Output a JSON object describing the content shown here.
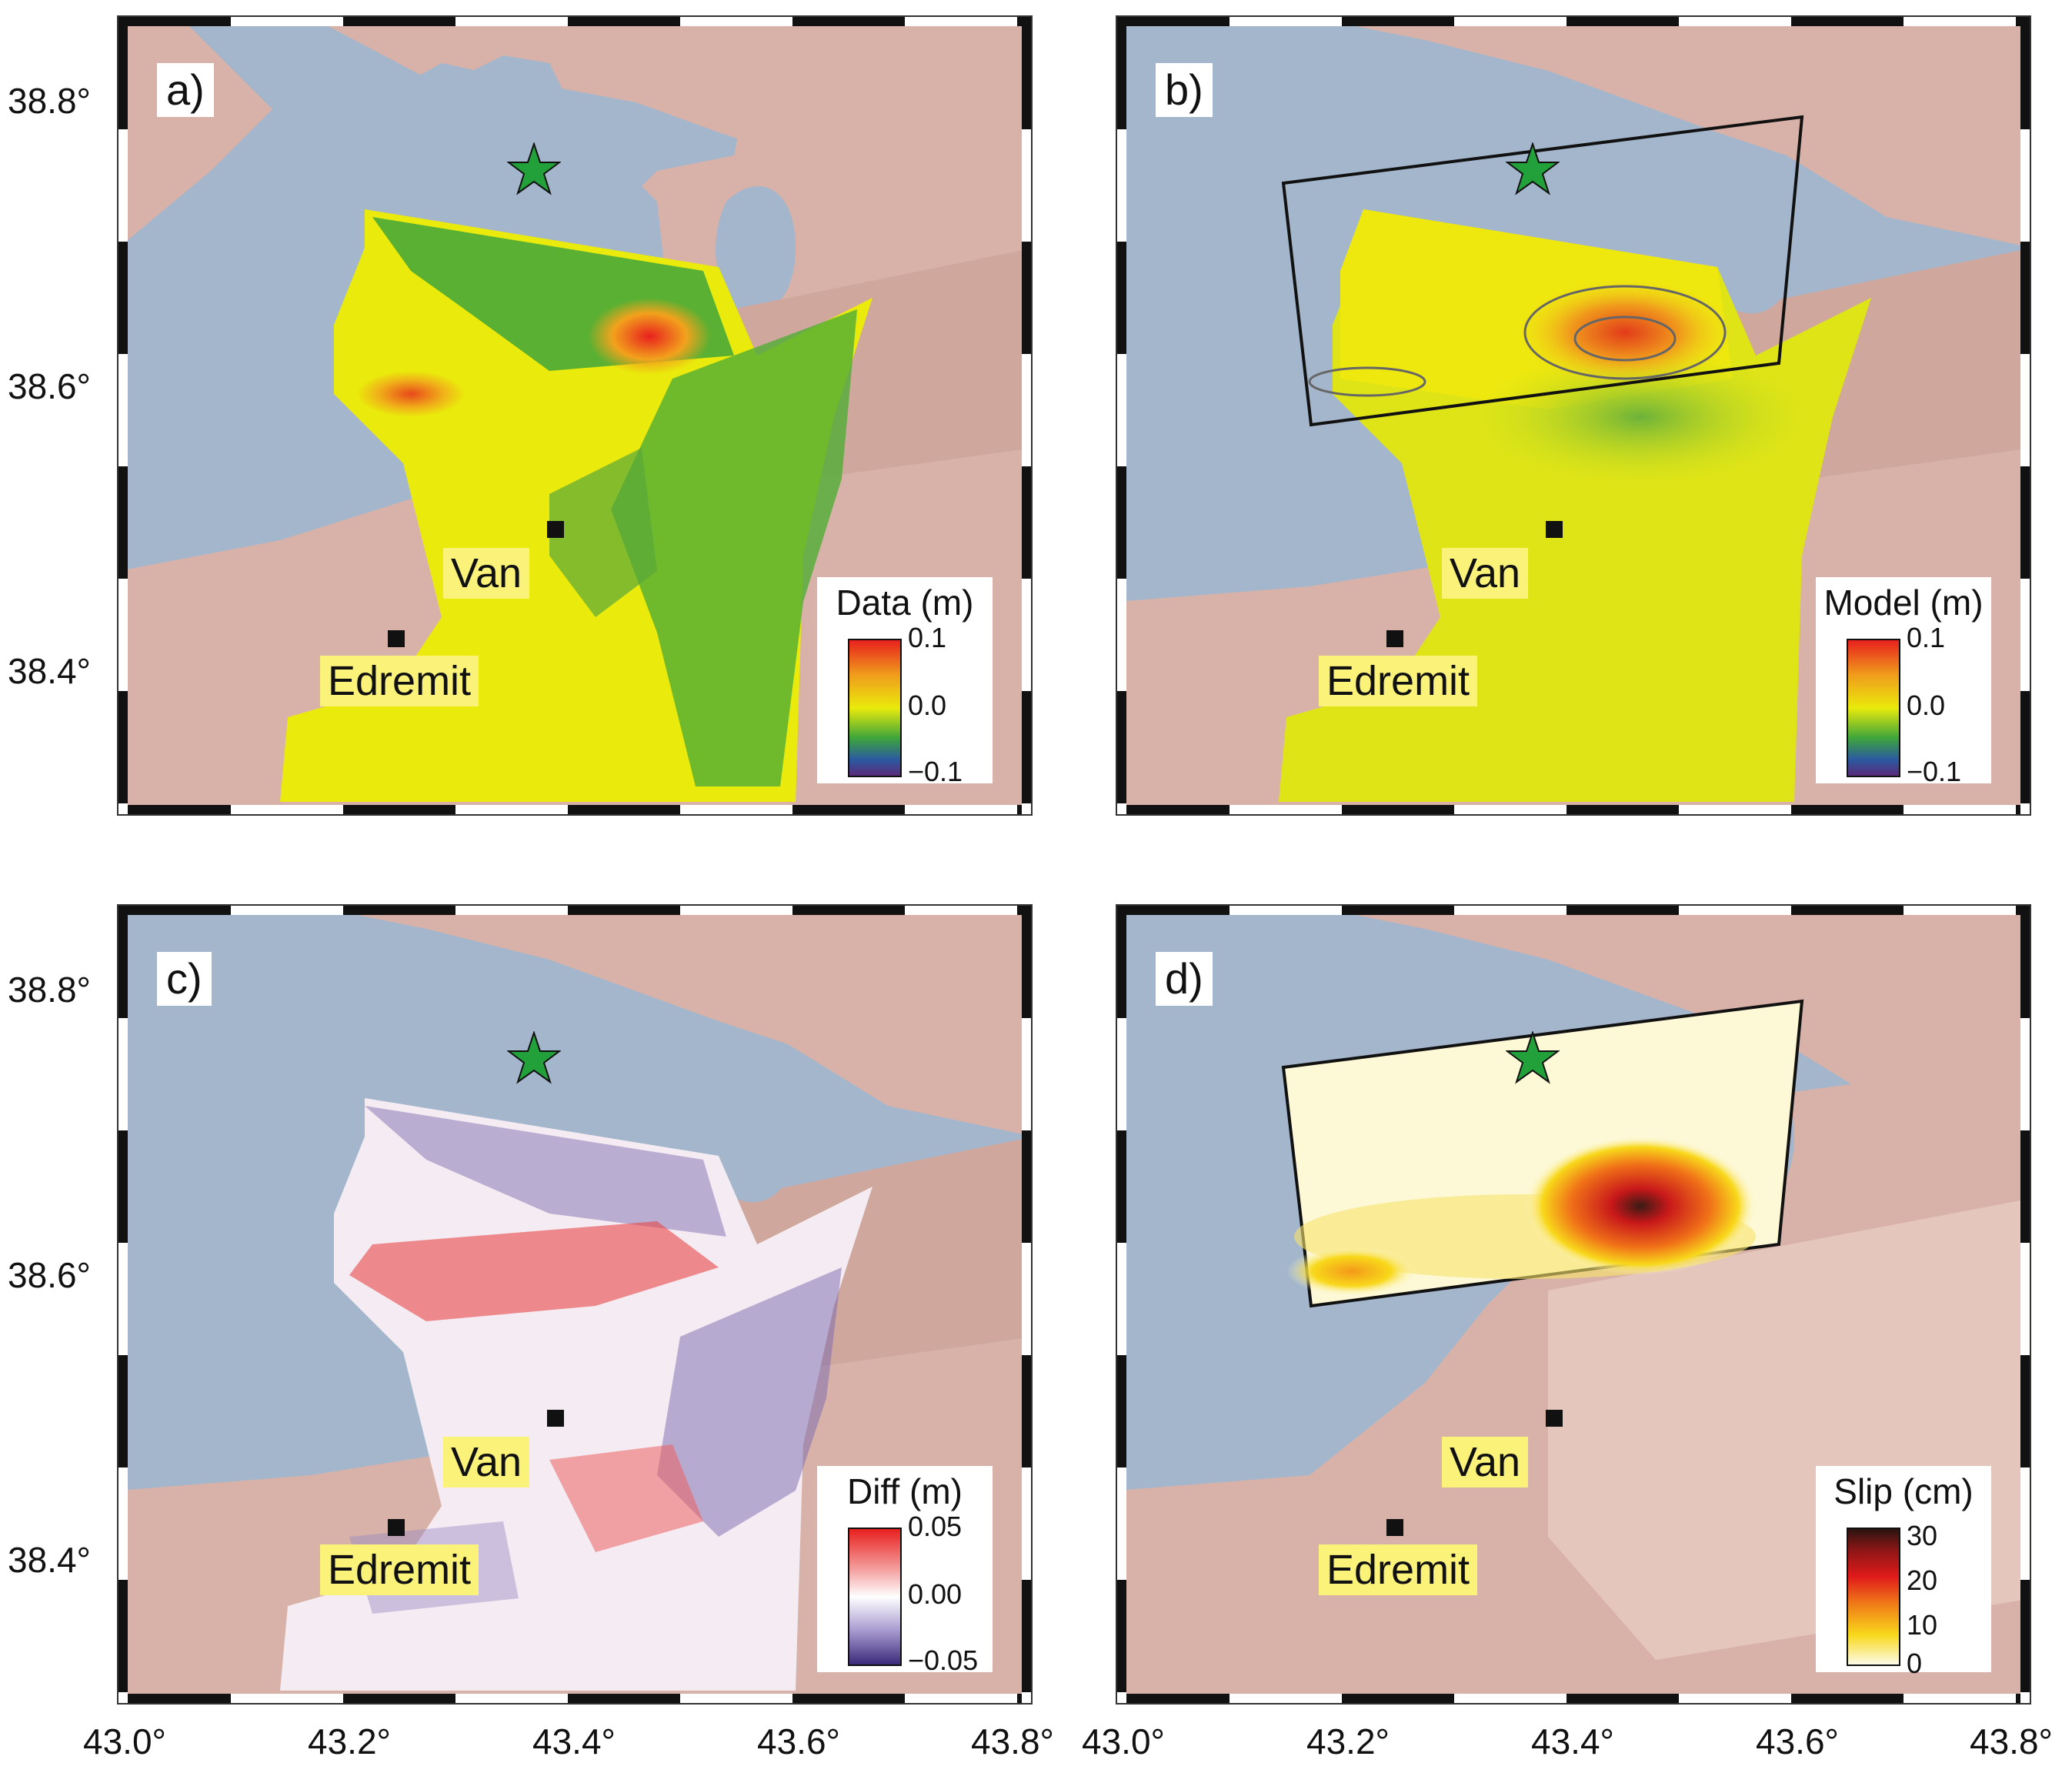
{
  "panels": [
    {
      "label": "a)",
      "legend_title": "Data (m)",
      "legend_ticks": [
        "0.1",
        "0.0",
        "−0.1"
      ],
      "type": "data"
    },
    {
      "label": "b)",
      "legend_title": "Model (m)",
      "legend_ticks": [
        "0.1",
        "0.0",
        "−0.1"
      ],
      "type": "model"
    },
    {
      "label": "c)",
      "legend_title": "Diff (m)",
      "legend_ticks": [
        "0.05",
        "0.00",
        "−0.05"
      ],
      "type": "diff"
    },
    {
      "label": "d)",
      "legend_title": "Slip (cm)",
      "legend_ticks": [
        "30",
        "20",
        "10",
        "0"
      ],
      "type": "slip"
    }
  ],
  "cities": {
    "van": "Van",
    "edremit": "Edremit"
  },
  "lat_labels": [
    "38.8°",
    "38.6°",
    "38.4°"
  ],
  "lon_labels": [
    "43.0°",
    "43.2°",
    "43.4°",
    "43.6°",
    "43.8°"
  ],
  "colors": {
    "water": "#a4b6cc",
    "land": "#d8b2a8",
    "star": "#22a03a",
    "city_label_bg": "#fbf27a"
  }
}
